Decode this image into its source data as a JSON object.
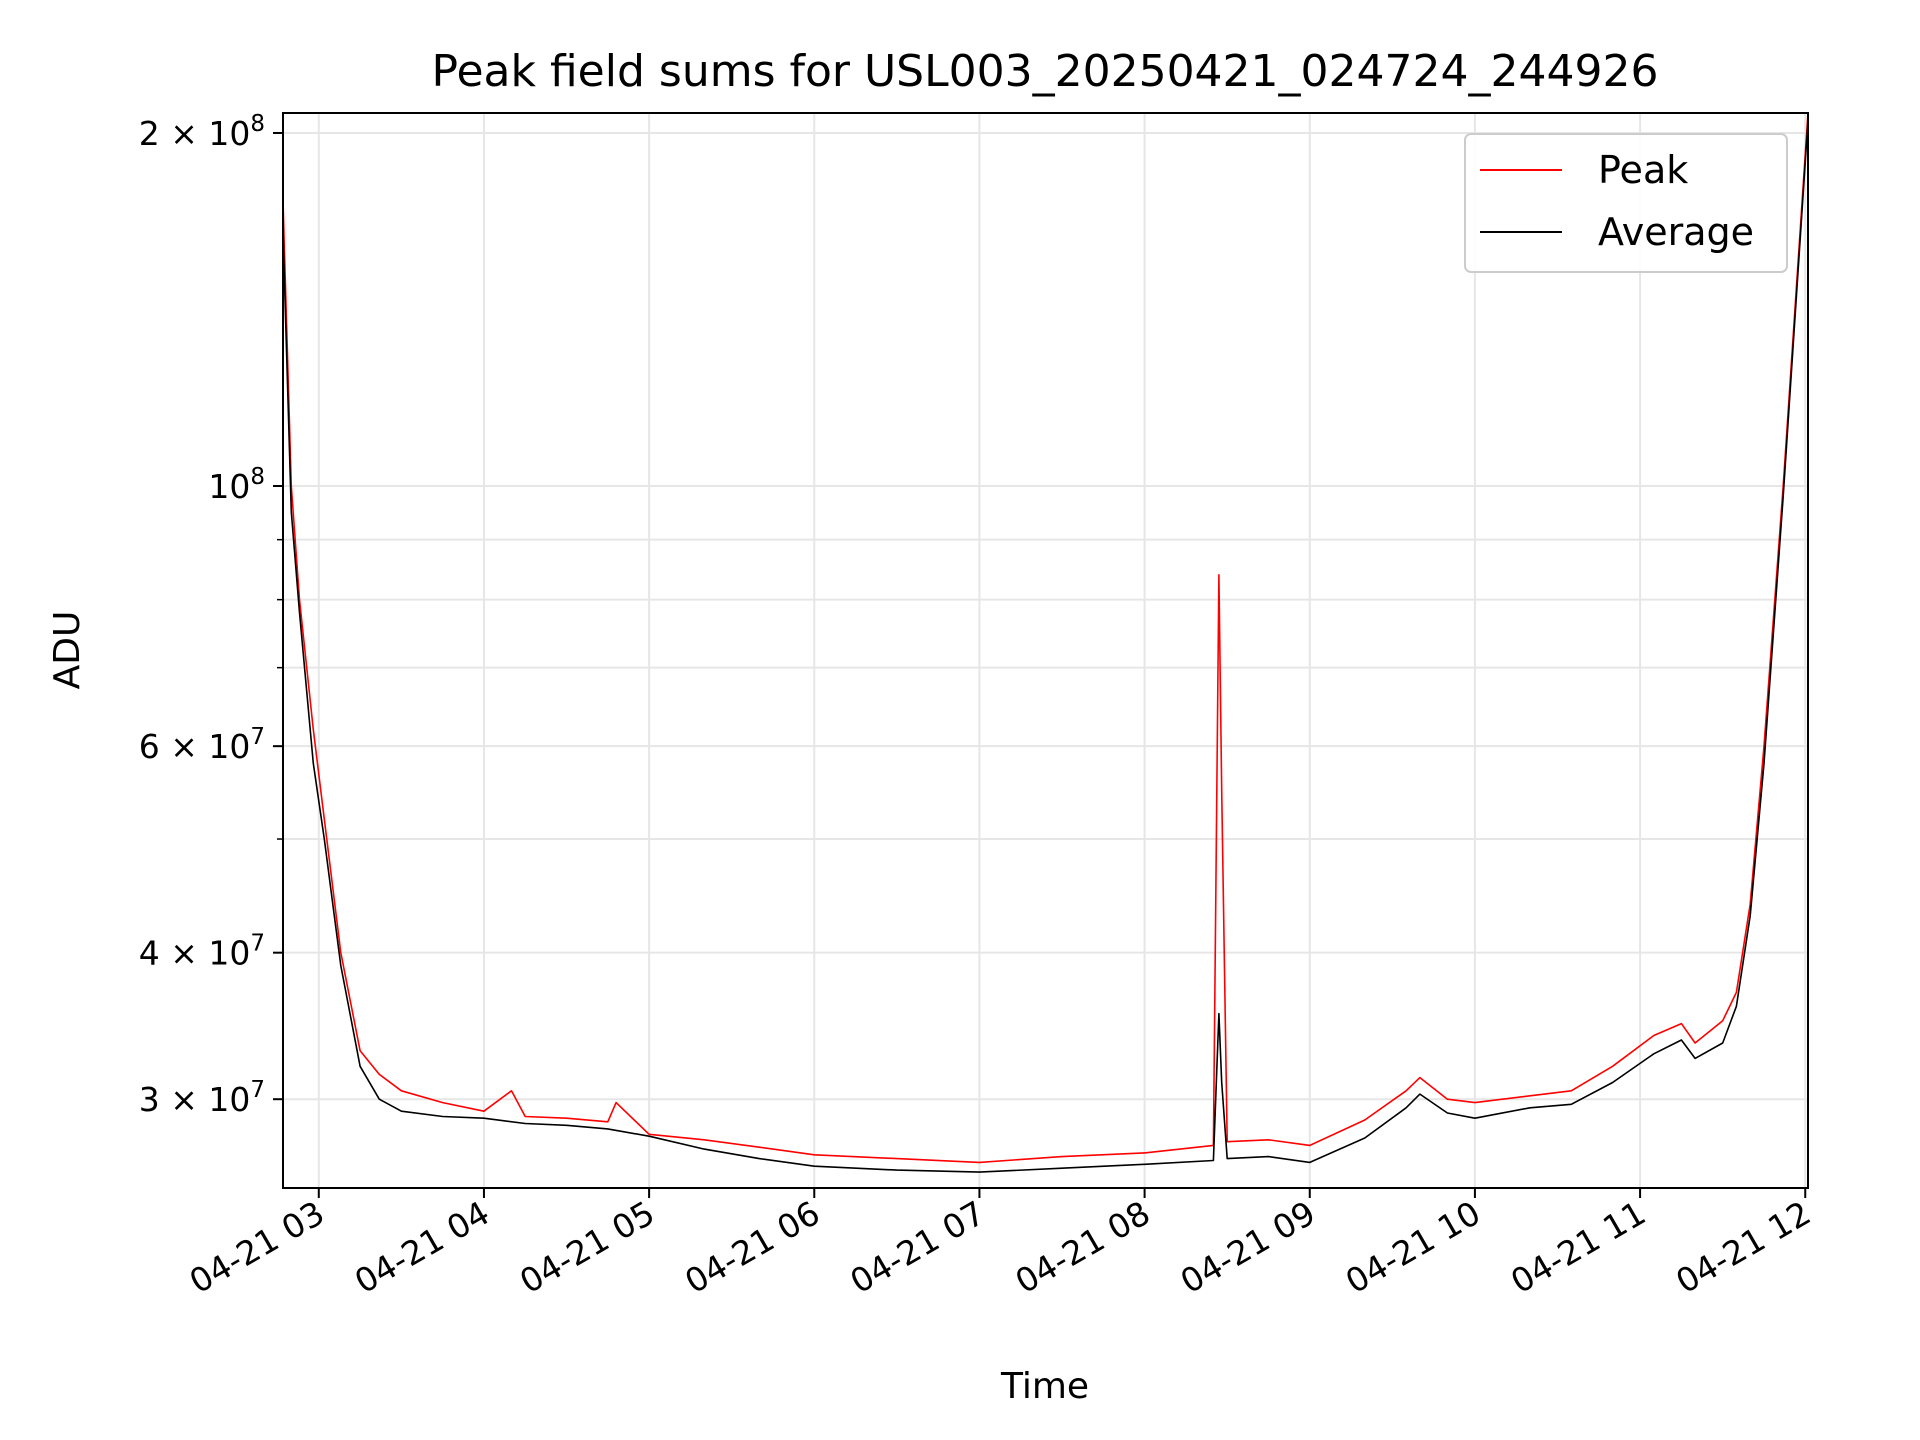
{
  "chart_data": {
    "type": "line",
    "title": "Peak field sums for USL003_20250421_024724_244926",
    "xlabel": "Time",
    "ylabel": "ADU",
    "yscale": "log",
    "xlim": [
      "2025-04-21 02:47",
      "2025-04-21 12:01"
    ],
    "ylim": [
      25200000,
      208000000
    ],
    "grid": true,
    "legend_position": "upper right",
    "x_ticks": [
      "2025-04-21 03:00",
      "2025-04-21 04:00",
      "2025-04-21 05:00",
      "2025-04-21 06:00",
      "2025-04-21 07:00",
      "2025-04-21 08:00",
      "2025-04-21 09:00",
      "2025-04-21 10:00",
      "2025-04-21 11:00",
      "2025-04-21 12:00"
    ],
    "x_tick_labels": [
      "04-21 03",
      "04-21 04",
      "04-21 05",
      "04-21 06",
      "04-21 07",
      "04-21 08",
      "04-21 09",
      "04-21 10",
      "04-21 11",
      "04-21 12"
    ],
    "y_ticks": [
      {
        "value": 200000000,
        "mant": "2",
        "exp": "8"
      },
      {
        "value": 100000000,
        "mant": "",
        "exp": "8"
      },
      {
        "value": 60000000,
        "mant": "6",
        "exp": "7"
      },
      {
        "value": 40000000,
        "mant": "4",
        "exp": "7"
      },
      {
        "value": 30000000,
        "mant": "3",
        "exp": "7"
      }
    ],
    "y_minor_ticks": [
      90000000,
      80000000,
      70000000,
      50000000
    ],
    "series": [
      {
        "name": "Peak",
        "color": "#ff0000",
        "points": [
          [
            "2025-04-21 02:47",
            175000000
          ],
          [
            "2025-04-21 02:50",
            100000000
          ],
          [
            "2025-04-21 02:53",
            80000000
          ],
          [
            "2025-04-21 02:58",
            62000000
          ],
          [
            "2025-04-21 03:02",
            52000000
          ],
          [
            "2025-04-21 03:08",
            40000000
          ],
          [
            "2025-04-21 03:15",
            33000000
          ],
          [
            "2025-04-21 03:22",
            31500000
          ],
          [
            "2025-04-21 03:30",
            30500000
          ],
          [
            "2025-04-21 03:45",
            29800000
          ],
          [
            "2025-04-21 04:00",
            29300000
          ],
          [
            "2025-04-21 04:10",
            30500000
          ],
          [
            "2025-04-21 04:15",
            29000000
          ],
          [
            "2025-04-21 04:30",
            28900000
          ],
          [
            "2025-04-21 04:45",
            28700000
          ],
          [
            "2025-04-21 04:48",
            29800000
          ],
          [
            "2025-04-21 05:00",
            28000000
          ],
          [
            "2025-04-21 05:20",
            27700000
          ],
          [
            "2025-04-21 05:40",
            27300000
          ],
          [
            "2025-04-21 06:00",
            26900000
          ],
          [
            "2025-04-21 06:30",
            26700000
          ],
          [
            "2025-04-21 07:00",
            26500000
          ],
          [
            "2025-04-21 07:30",
            26800000
          ],
          [
            "2025-04-21 08:00",
            27000000
          ],
          [
            "2025-04-21 08:25",
            27400000
          ],
          [
            "2025-04-21 08:27",
            84000000
          ],
          [
            "2025-04-21 08:28",
            55000000
          ],
          [
            "2025-04-21 08:30",
            27600000
          ],
          [
            "2025-04-21 08:45",
            27700000
          ],
          [
            "2025-04-21 09:00",
            27400000
          ],
          [
            "2025-04-21 09:20",
            28800000
          ],
          [
            "2025-04-21 09:35",
            30500000
          ],
          [
            "2025-04-21 09:40",
            31300000
          ],
          [
            "2025-04-21 09:50",
            30000000
          ],
          [
            "2025-04-21 10:00",
            29800000
          ],
          [
            "2025-04-21 10:20",
            30200000
          ],
          [
            "2025-04-21 10:35",
            30500000
          ],
          [
            "2025-04-21 10:50",
            32000000
          ],
          [
            "2025-04-21 11:05",
            34000000
          ],
          [
            "2025-04-21 11:15",
            34800000
          ],
          [
            "2025-04-21 11:20",
            33500000
          ],
          [
            "2025-04-21 11:30",
            35000000
          ],
          [
            "2025-04-21 11:35",
            37000000
          ],
          [
            "2025-04-21 11:40",
            44000000
          ],
          [
            "2025-04-21 11:45",
            60000000
          ],
          [
            "2025-04-21 11:52",
            100000000
          ],
          [
            "2025-04-21 12:01",
            208000000
          ]
        ]
      },
      {
        "name": "Average",
        "color": "#000000",
        "points": [
          [
            "2025-04-21 02:47",
            165000000
          ],
          [
            "2025-04-21 02:50",
            95000000
          ],
          [
            "2025-04-21 02:53",
            78000000
          ],
          [
            "2025-04-21 02:58",
            58000000
          ],
          [
            "2025-04-21 03:02",
            50000000
          ],
          [
            "2025-04-21 03:08",
            39000000
          ],
          [
            "2025-04-21 03:15",
            32000000
          ],
          [
            "2025-04-21 03:22",
            30000000
          ],
          [
            "2025-04-21 03:30",
            29300000
          ],
          [
            "2025-04-21 03:45",
            29000000
          ],
          [
            "2025-04-21 04:00",
            28900000
          ],
          [
            "2025-04-21 04:15",
            28600000
          ],
          [
            "2025-04-21 04:30",
            28500000
          ],
          [
            "2025-04-21 04:45",
            28300000
          ],
          [
            "2025-04-21 05:00",
            27900000
          ],
          [
            "2025-04-21 05:20",
            27200000
          ],
          [
            "2025-04-21 05:40",
            26700000
          ],
          [
            "2025-04-21 06:00",
            26300000
          ],
          [
            "2025-04-21 06:30",
            26100000
          ],
          [
            "2025-04-21 07:00",
            26000000
          ],
          [
            "2025-04-21 07:30",
            26200000
          ],
          [
            "2025-04-21 08:00",
            26400000
          ],
          [
            "2025-04-21 08:25",
            26600000
          ],
          [
            "2025-04-21 08:27",
            35500000
          ],
          [
            "2025-04-21 08:28",
            31000000
          ],
          [
            "2025-04-21 08:30",
            26700000
          ],
          [
            "2025-04-21 08:45",
            26800000
          ],
          [
            "2025-04-21 09:00",
            26500000
          ],
          [
            "2025-04-21 09:20",
            27800000
          ],
          [
            "2025-04-21 09:35",
            29500000
          ],
          [
            "2025-04-21 09:40",
            30300000
          ],
          [
            "2025-04-21 09:50",
            29200000
          ],
          [
            "2025-04-21 10:00",
            28900000
          ],
          [
            "2025-04-21 10:20",
            29500000
          ],
          [
            "2025-04-21 10:35",
            29700000
          ],
          [
            "2025-04-21 10:50",
            31000000
          ],
          [
            "2025-04-21 11:05",
            32800000
          ],
          [
            "2025-04-21 11:15",
            33700000
          ],
          [
            "2025-04-21 11:20",
            32500000
          ],
          [
            "2025-04-21 11:30",
            33500000
          ],
          [
            "2025-04-21 11:35",
            36000000
          ],
          [
            "2025-04-21 11:40",
            43000000
          ],
          [
            "2025-04-21 11:45",
            58000000
          ],
          [
            "2025-04-21 11:52",
            98000000
          ],
          [
            "2025-04-21 12:01",
            205000000
          ]
        ]
      }
    ]
  }
}
